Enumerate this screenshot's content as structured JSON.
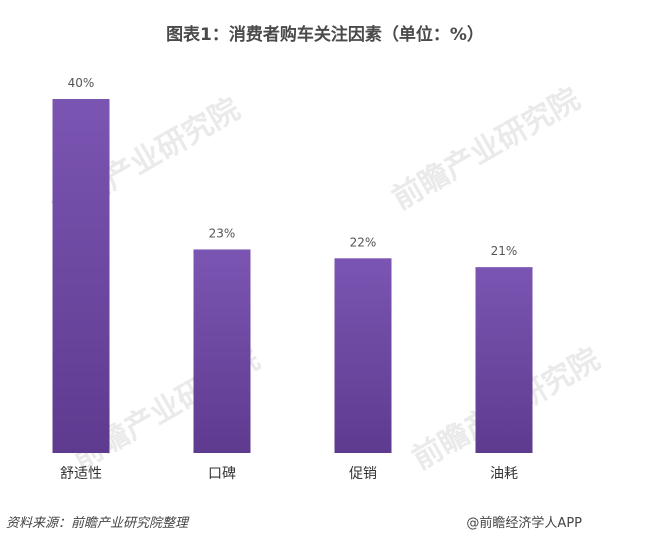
{
  "chart_data": {
    "type": "bar",
    "title": "图表1：消费者购车关注因素（单位：%）",
    "categories": [
      "舒适性",
      "口碑",
      "促销",
      "油耗"
    ],
    "values": [
      40,
      23,
      22,
      21
    ],
    "value_labels": [
      "40%",
      "23%",
      "22%",
      "21%"
    ],
    "ylim": [
      0,
      40
    ],
    "grid": false,
    "legend": "none",
    "bar_color_top": "#7b55b2",
    "bar_color_bottom": "#5e3b8f"
  },
  "footer": {
    "source": "资料来源：前瞻产业研究院整理",
    "credit": "@前瞻经济学人APP"
  },
  "watermark": {
    "text": "前瞻产业研究院"
  }
}
